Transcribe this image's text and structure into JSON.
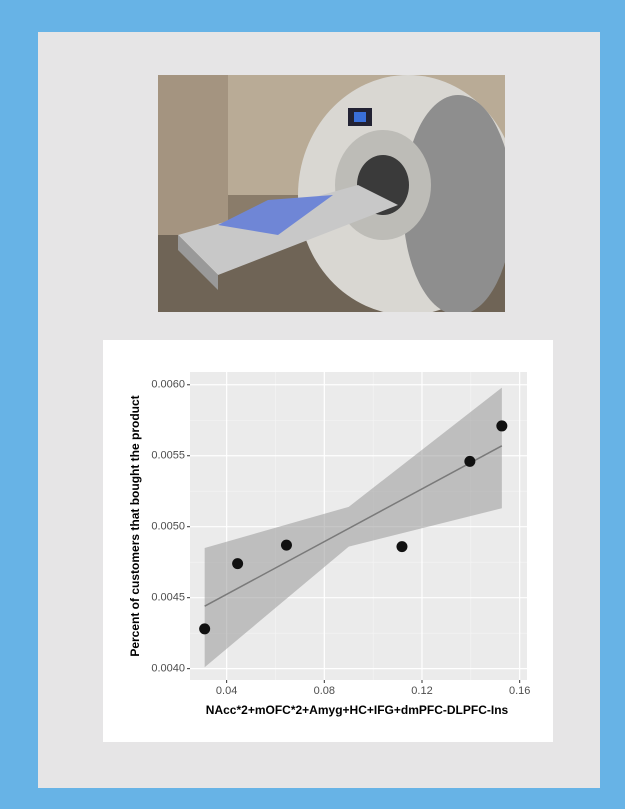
{
  "chart_data": {
    "type": "scatter",
    "x_label": "NAcc*2+mOFC*2+Amyg+HC+IFG+dmPFC-DLPFC-Ins",
    "y_label": "Percent of customers that bought the product",
    "x": [
      0.031,
      0.0445,
      0.0645,
      0.1118,
      0.1396,
      0.1527
    ],
    "values": [
      0.00428,
      0.00474,
      0.00487,
      0.00486,
      0.00546,
      0.00571
    ],
    "color": "#111111",
    "fit": {
      "x": [
        0.031,
        0.1527
      ],
      "values": [
        0.00444,
        0.00557
      ],
      "color": "#7a7a7a"
    },
    "band": {
      "x": [
        0.031,
        0.09,
        0.1527
      ],
      "lower": [
        0.00401,
        0.00486,
        0.00513
      ],
      "upper": [
        0.00485,
        0.00514,
        0.00598
      ],
      "color": "#999999"
    },
    "xlim": [
      0.025,
      0.163
    ],
    "ylim": [
      0.00392,
      0.00609
    ],
    "xticks": [
      0.04,
      0.08,
      0.12,
      0.16
    ],
    "yticks": [
      {
        "value": 0.004,
        "label": "0.0040"
      },
      {
        "value": 0.0045,
        "label": "0.0045"
      },
      {
        "value": 0.005,
        "label": "0.0050"
      },
      {
        "value": 0.0055,
        "label": "0.0055"
      },
      {
        "value": 0.006,
        "label": "0.0060"
      }
    ],
    "grid": true
  }
}
